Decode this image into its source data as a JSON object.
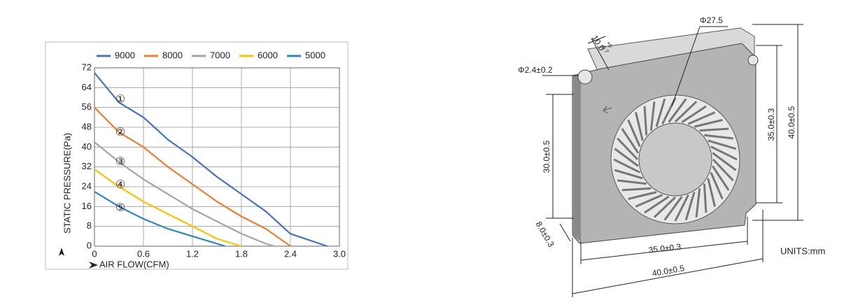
{
  "chart_data": {
    "type": "line",
    "y_label": "STATIC PRESSURE(Pa)",
    "x_label": "AIR FLOW(CFM)",
    "xlim": [
      0,
      3
    ],
    "ylim": [
      0,
      72
    ],
    "xticks": [
      0,
      0.6,
      1.2,
      1.8,
      2.4,
      {
        "value": 3,
        "label": "3.0"
      }
    ],
    "yticks": [
      0,
      8,
      16,
      24,
      32,
      40,
      48,
      56,
      64,
      72
    ],
    "grid": true,
    "legend": "top",
    "annotations": [
      "①",
      "②",
      "③",
      "④",
      "⑤"
    ],
    "series": [
      {
        "name": "9000",
        "color": "#4472c4",
        "x": [
          0,
          0.3,
          0.6,
          0.9,
          1.2,
          1.5,
          1.8,
          2.1,
          2.4,
          2.85
        ],
        "values": [
          70,
          58,
          52,
          43,
          36,
          28,
          21,
          14,
          5,
          0
        ]
      },
      {
        "name": "8000",
        "color": "#ed7d31",
        "x": [
          0,
          0.3,
          0.6,
          0.9,
          1.2,
          1.5,
          1.8,
          2.1,
          2.4
        ],
        "values": [
          56,
          46,
          40,
          32,
          25,
          18,
          12,
          7,
          0
        ]
      },
      {
        "name": "7000",
        "color": "#a5a5a5",
        "x": [
          0,
          0.3,
          0.6,
          0.9,
          1.2,
          1.5,
          1.8,
          2.1,
          2.2
        ],
        "values": [
          42,
          34,
          27,
          21,
          15,
          10,
          5,
          1,
          0
        ]
      },
      {
        "name": "6000",
        "color": "#ffc000",
        "x": [
          0,
          0.3,
          0.6,
          0.9,
          1.2,
          1.5,
          1.8
        ],
        "values": [
          31,
          24,
          18,
          13,
          8,
          3,
          0
        ]
      },
      {
        "name": "5000",
        "color": "#2e86c8",
        "x": [
          0,
          0.3,
          0.6,
          0.9,
          1.2,
          1.5,
          1.6
        ],
        "values": [
          22,
          16,
          11,
          7,
          4,
          1,
          0
        ]
      }
    ]
  },
  "drawing": {
    "fan_diameter": "Φ27.5",
    "depth": "10.0",
    "depth_tol_upper": "+0",
    "depth_tol_lower": "-0.7",
    "hole": "Φ2.4±0.2",
    "hole_pitch_vertical": "30.0±0.5",
    "inner_height": "35.0±0.3",
    "outer_height": "40.0±0.5",
    "corner": "8.0±0.3",
    "inner_width": "35.0±0.3",
    "outer_width": "40.0±0.5",
    "units": "UNITS:mm"
  }
}
